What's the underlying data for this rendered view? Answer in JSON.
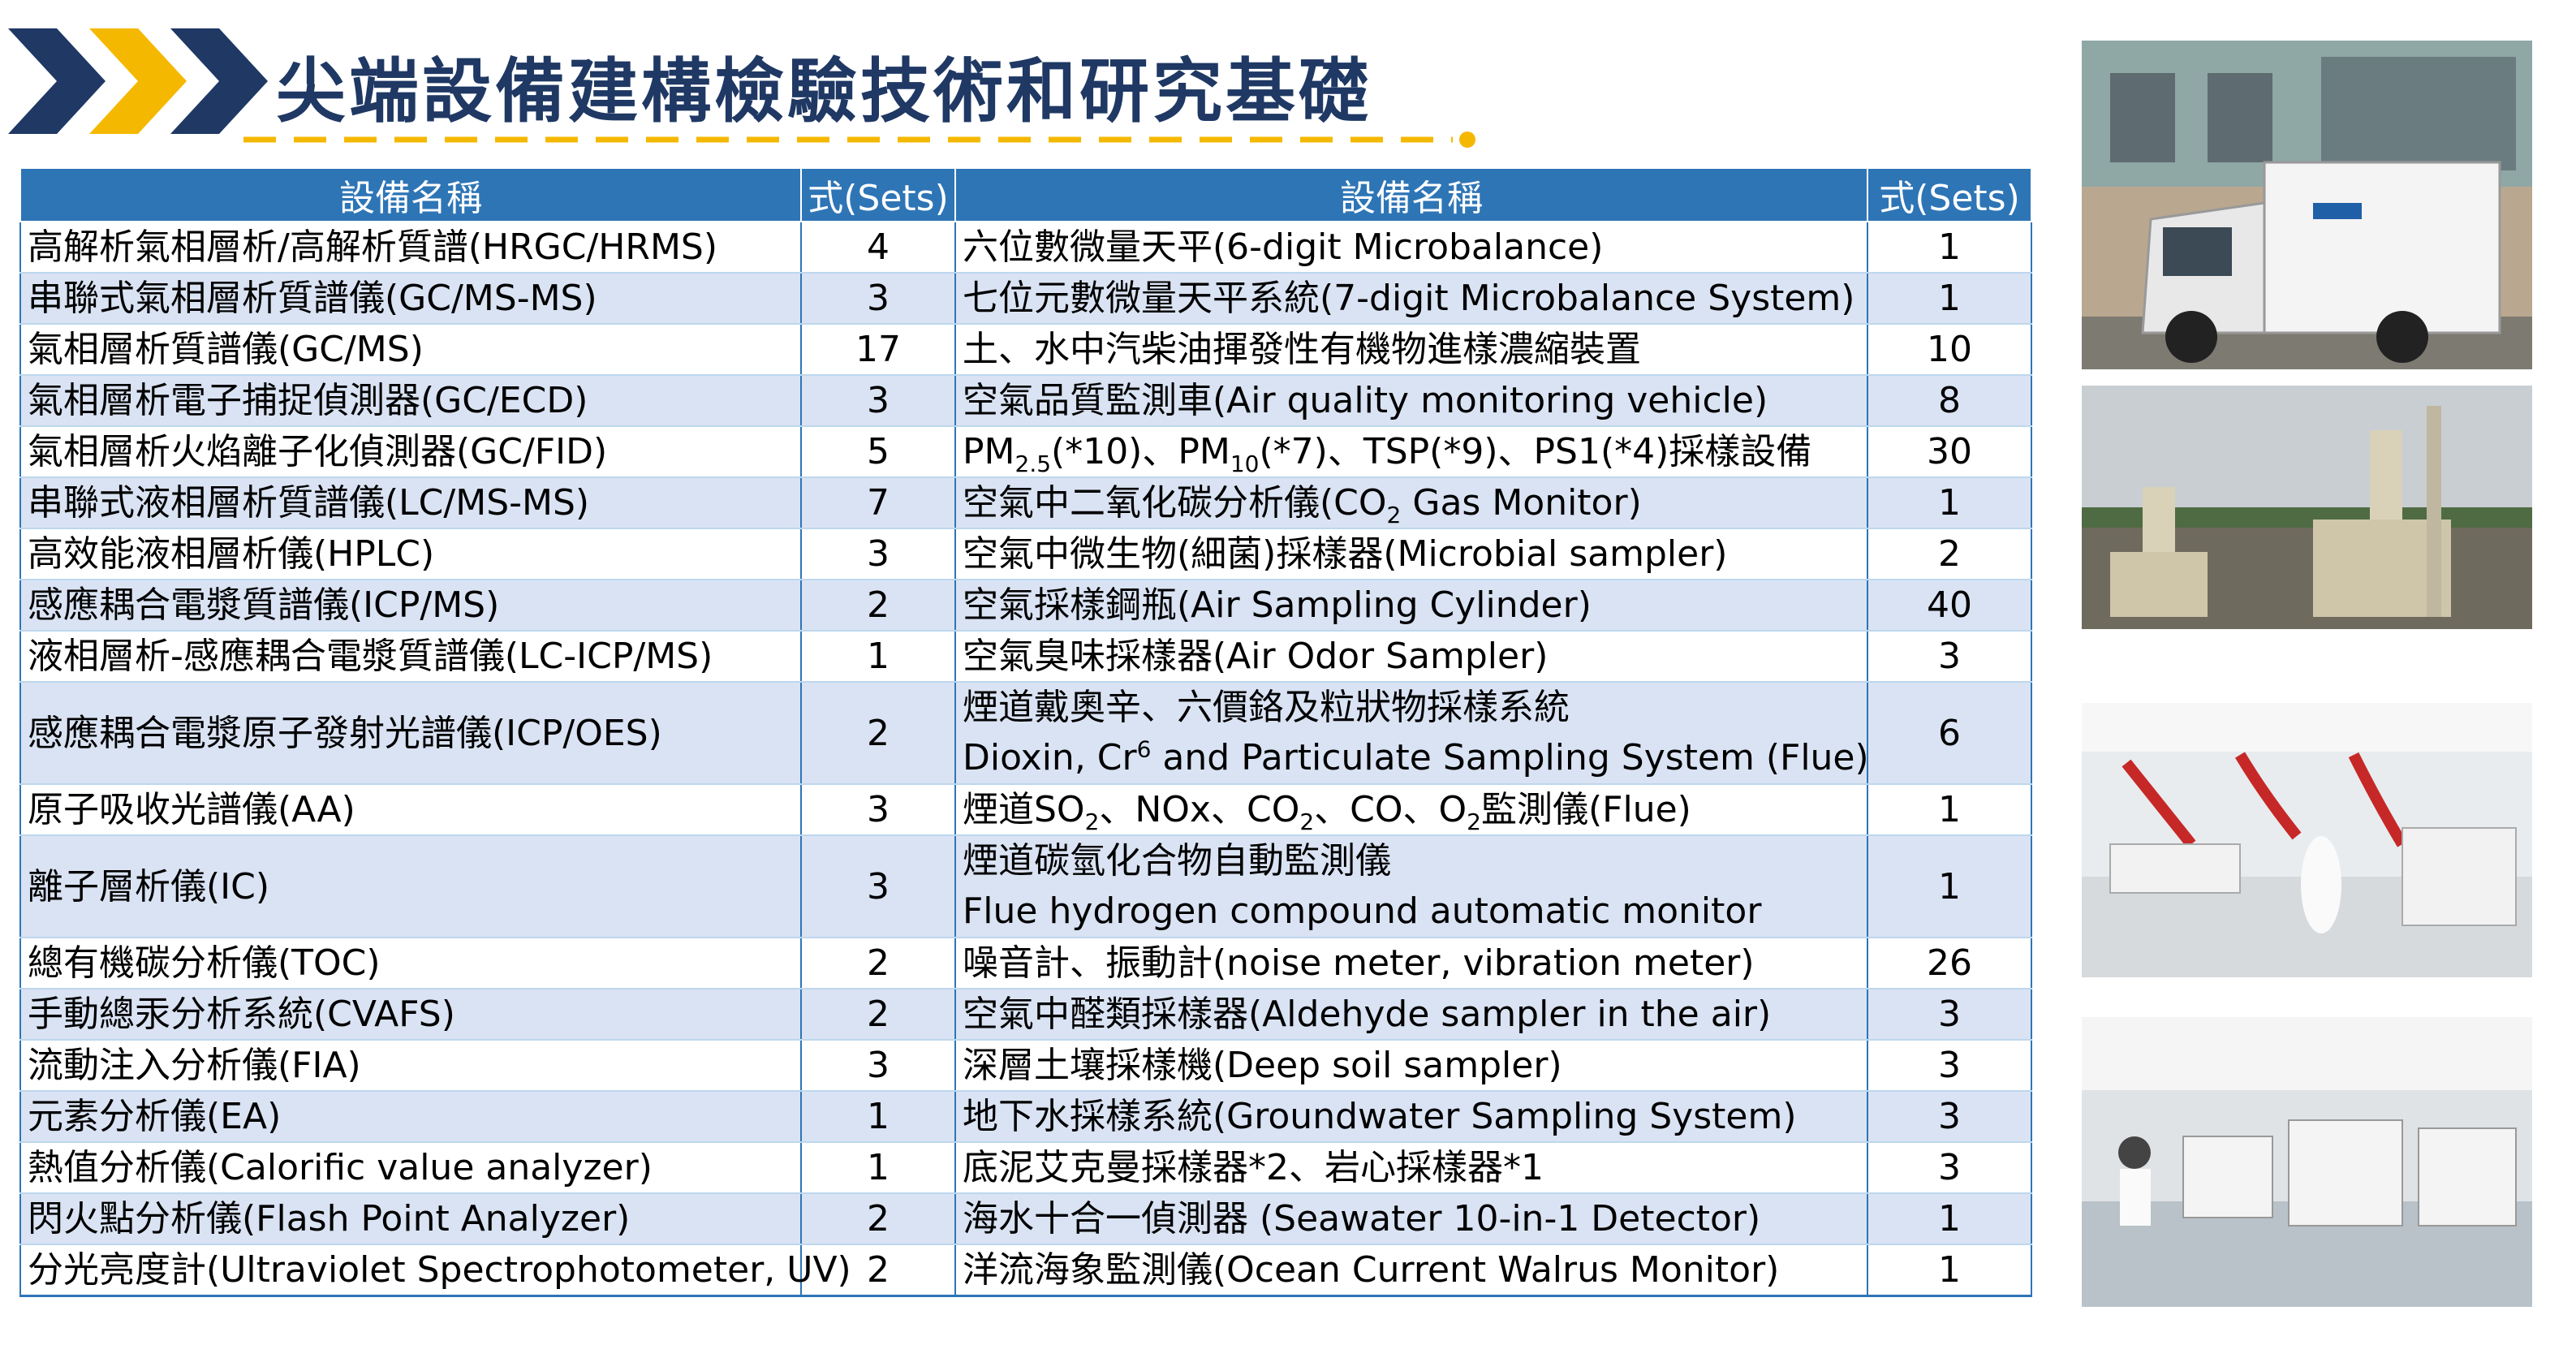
{
  "header": {
    "title": "尖端設備建構檢驗技術和研究基礎"
  },
  "table": {
    "columns": [
      "設備名稱",
      "式(Sets)",
      "設備名稱",
      "式(Sets)"
    ],
    "rows": [
      [
        "高解析氣相層析/高解析質譜(HRGC/HRMS)",
        4,
        "六位數微量天平(6-digit Microbalance)",
        1
      ],
      [
        "串聯式氣相層析質譜儀(GC/MS-MS)",
        3,
        "七位元數微量天平系統(7-digit Microbalance System)",
        1
      ],
      [
        "氣相層析質譜儀(GC/MS)",
        17,
        "土、水中汽柴油揮發性有機物進樣濃縮裝置",
        10
      ],
      [
        "氣相層析電子捕捉偵測器(GC/ECD)",
        3,
        "空氣品質監測車(Air quality monitoring vehicle)",
        8
      ],
      [
        "氣相層析火焰離子化偵測器(GC/FID)",
        5,
        [
          "PM",
          {
            "sub": "2.5"
          },
          "(*10)、PM",
          {
            "sub": "10"
          },
          "(*7)、TSP(*9)、PS1(*4)採樣設備"
        ],
        30
      ],
      [
        "串聯式液相層析質譜儀(LC/MS-MS)",
        7,
        [
          "空氣中二氧化碳分析儀(CO",
          {
            "sub": "2"
          },
          " Gas Monitor)"
        ],
        1
      ],
      [
        "高效能液相層析儀(HPLC)",
        3,
        "空氣中微生物(細菌)採樣器(Microbial sampler)",
        2
      ],
      [
        "感應耦合電漿質譜儀(ICP/MS)",
        2,
        "空氣採樣鋼瓶(Air Sampling Cylinder)",
        40
      ],
      [
        "液相層析-感應耦合電漿質譜儀(LC-ICP/MS)",
        1,
        "空氣臭味採樣器(Air Odor Sampler)",
        3
      ],
      [
        "感應耦合電漿原子發射光譜儀(ICP/OES)",
        2,
        {
          "lines": [
            "煙道戴奧辛、六價鉻及粒狀物採樣系統",
            [
              "Dioxin, Cr",
              {
                "sup": "6"
              },
              " and Particulate Sampling System (Flue)"
            ]
          ]
        },
        6
      ],
      [
        "原子吸收光譜儀(AA)",
        3,
        [
          "煙道SO",
          {
            "sub": "2"
          },
          "、NOx、CO",
          {
            "sub": "2"
          },
          "、CO、O",
          {
            "sub": "2"
          },
          "監測儀(Flue)"
        ],
        1
      ],
      [
        "離子層析儀(IC)",
        3,
        {
          "lines": [
            "煙道碳氫化合物自動監測儀",
            "Flue hydrogen compound automatic monitor"
          ]
        },
        1
      ],
      [
        "總有機碳分析儀(TOC)",
        2,
        "噪音計、振動計(noise meter, vibration meter)",
        26
      ],
      [
        "手動總汞分析系統(CVAFS)",
        2,
        "空氣中醛類採樣器(Aldehyde sampler in the air)",
        3
      ],
      [
        "流動注入分析儀(FIA)",
        3,
        "深層土壤採樣機(Deep soil sampler)",
        3
      ],
      [
        "元素分析儀(EA)",
        1,
        "地下水採樣系統(Groundwater Sampling System)",
        3
      ],
      [
        "熱值分析儀(Calorific value analyzer)",
        1,
        "底泥艾克曼採樣器*2、岩心採樣器*1",
        3
      ],
      [
        "閃火點分析儀(Flash Point Analyzer)",
        2,
        "海水十合一偵測器 (Seawater 10-in-1 Detector)",
        1
      ],
      [
        "分光亮度計(Ultraviolet Spectrophotometer, UV)",
        2,
        "洋流海象監測儀(Ocean Current Walrus Monitor)",
        1
      ]
    ]
  }
}
